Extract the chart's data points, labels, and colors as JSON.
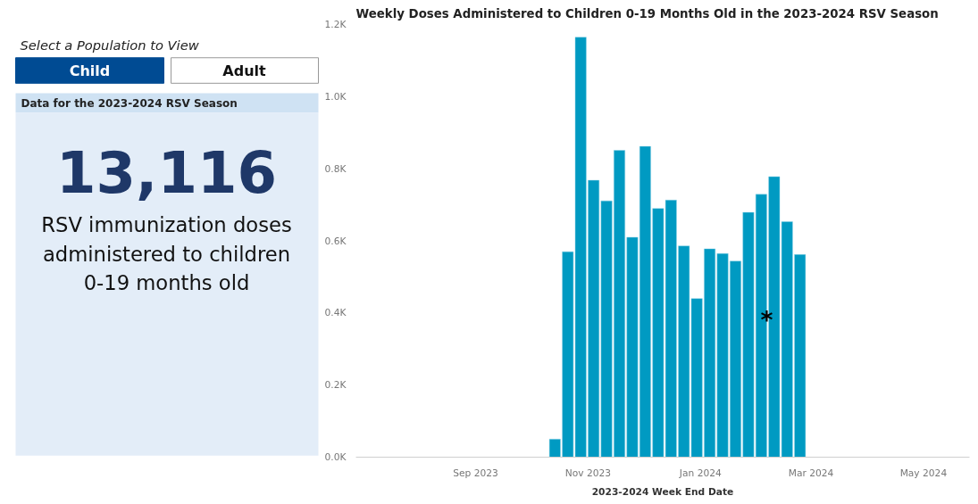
{
  "chart_data": [
    {
      "type": "other",
      "title": "Data for the 2023-2024 RSV Season",
      "annotations": [
        "Select a Population to View",
        "Child",
        "Adult",
        "13,116",
        "RSV immunization doses administered to children 0-19 months old"
      ]
    },
    {
      "type": "bar",
      "title": "Weekly Doses Administered to Children 0-19 Months Old in the 2023-2024 RSV Season",
      "xlabel": "2023-2024 Week End Date",
      "x": [
        "2023-10-14",
        "2023-10-21",
        "2023-10-28",
        "2023-11-04",
        "2023-11-11",
        "2023-11-18",
        "2023-11-25",
        "2023-12-02",
        "2023-12-09",
        "2023-12-16",
        "2023-12-23",
        "2023-12-30",
        "2024-01-06",
        "2024-01-13",
        "2024-01-20",
        "2024-01-27",
        "2024-02-03",
        "2024-02-10",
        "2024-02-17",
        "2024-02-24"
      ],
      "values": [
        50,
        570,
        1165,
        768,
        711,
        851,
        610,
        862,
        690,
        713,
        586,
        440,
        578,
        565,
        544,
        679,
        729,
        778,
        653,
        562
      ],
      "color": "#009ac2",
      "xlim": [
        "2023-06-28",
        "2024-05-26"
      ],
      "xticks": [
        {
          "value": "2023-09-01",
          "label": "Sep 2023"
        },
        {
          "value": "2023-11-01",
          "label": "Nov 2023"
        },
        {
          "value": "2024-01-01",
          "label": "Jan 2024"
        },
        {
          "value": "2024-03-01",
          "label": "Mar 2024"
        },
        {
          "value": "2024-05-01",
          "label": "May 2024"
        }
      ],
      "ylim": [
        0,
        1200
      ],
      "yticks": [
        {
          "value": 0,
          "label": "0.0K"
        },
        {
          "value": 200,
          "label": "0.2K"
        },
        {
          "value": 400,
          "label": "0.4K"
        },
        {
          "value": 600,
          "label": "0.6K"
        },
        {
          "value": 800,
          "label": "0.8K"
        },
        {
          "value": 1000,
          "label": "1.0K"
        },
        {
          "value": 1200,
          "label": "1.2K"
        }
      ],
      "annotations": [
        {
          "text": "*",
          "x": "2024-02-06",
          "y": 380
        }
      ]
    }
  ]
}
